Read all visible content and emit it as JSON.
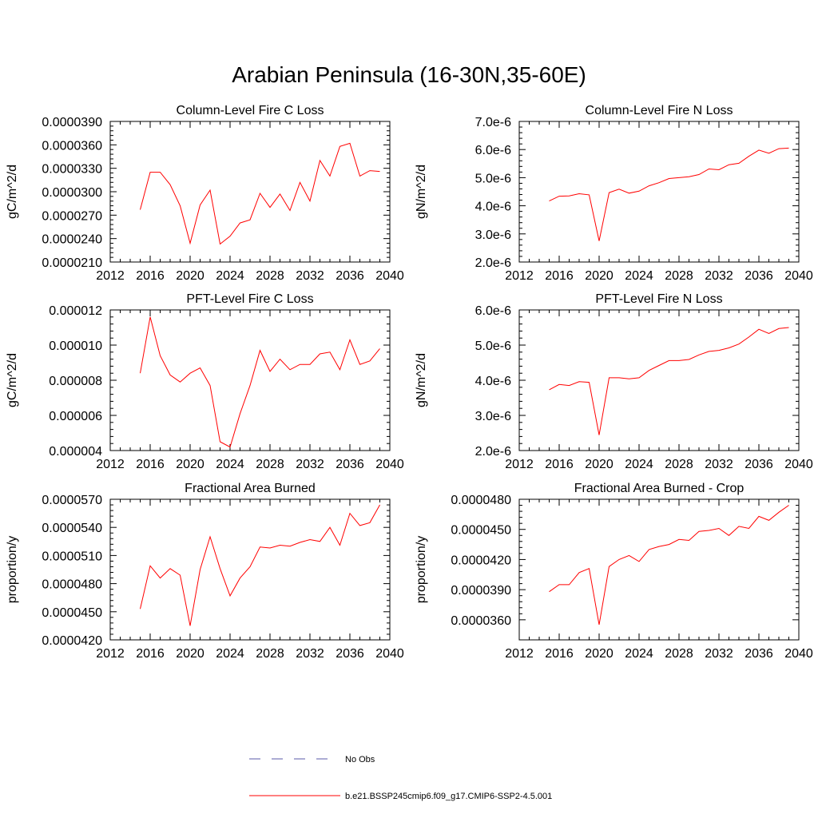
{
  "page": {
    "title": "Arabian Peninsula (16-30N,35-60E)"
  },
  "legend": {
    "entries": [
      {
        "label": "No Obs",
        "color": "#5a5aa8",
        "style": "dashed"
      },
      {
        "label": "b.e21.BSSP245cmip6.f09_g17.CMIP6-SSP2-4.5.001",
        "color": "#ff0000",
        "style": "solid"
      }
    ]
  },
  "chart_data": [
    {
      "type": "line",
      "title": "Column-Level Fire C Loss",
      "ylabel": "gC/m^2/d",
      "xlim": [
        2012,
        2040
      ],
      "xticks": [
        2012,
        2016,
        2020,
        2024,
        2028,
        2032,
        2036,
        2040
      ],
      "ylim": [
        2.1e-05,
        3.9e-05
      ],
      "yticks": [
        "0.0000210",
        "0.0000240",
        "0.0000270",
        "0.0000300",
        "0.0000330",
        "0.0000360",
        "0.0000390"
      ],
      "grid": false,
      "series": [
        {
          "name": "b.e21.BSSP245cmip6.f09_g17.CMIP6-SSP2-4.5.001",
          "color": "#ff0000",
          "x": [
            2015,
            2016,
            2017,
            2018,
            2019,
            2020,
            2021,
            2022,
            2023,
            2024,
            2025,
            2026,
            2027,
            2028,
            2029,
            2030,
            2031,
            2032,
            2033,
            2034,
            2035,
            2036,
            2037,
            2038,
            2039
          ],
          "values": [
            2.77e-05,
            3.25e-05,
            3.25e-05,
            3.09e-05,
            2.82e-05,
            2.34e-05,
            2.83e-05,
            3.02e-05,
            2.33e-05,
            2.43e-05,
            2.6e-05,
            2.64e-05,
            2.98e-05,
            2.8e-05,
            2.97e-05,
            2.76e-05,
            3.12e-05,
            2.88e-05,
            3.4e-05,
            3.2e-05,
            3.58e-05,
            3.62e-05,
            3.2e-05,
            3.27e-05,
            3.26e-05
          ]
        }
      ]
    },
    {
      "type": "line",
      "title": "Column-Level Fire N Loss",
      "ylabel": "gN/m^2/d",
      "xlim": [
        2012,
        2040
      ],
      "xticks": [
        2012,
        2016,
        2020,
        2024,
        2028,
        2032,
        2036,
        2040
      ],
      "ylim": [
        2e-06,
        7e-06
      ],
      "yticks": [
        "2.0e-6",
        "3.0e-6",
        "4.0e-6",
        "5.0e-6",
        "6.0e-6",
        "7.0e-6"
      ],
      "grid": false,
      "series": [
        {
          "name": "b.e21.BSSP245cmip6.f09_g17.CMIP6-SSP2-4.5.001",
          "color": "#ff0000",
          "x": [
            2015,
            2016,
            2017,
            2018,
            2019,
            2020,
            2021,
            2022,
            2023,
            2024,
            2025,
            2026,
            2027,
            2028,
            2029,
            2030,
            2031,
            2032,
            2033,
            2034,
            2035,
            2036,
            2037,
            2038,
            2039
          ],
          "values": [
            4.17e-06,
            4.34e-06,
            4.35e-06,
            4.43e-06,
            4.39e-06,
            2.75e-06,
            4.47e-06,
            4.59e-06,
            4.45e-06,
            4.52e-06,
            4.71e-06,
            4.82e-06,
            4.97e-06,
            5e-06,
            5.03e-06,
            5.11e-06,
            5.31e-06,
            5.28e-06,
            5.46e-06,
            5.51e-06,
            5.76e-06,
            5.98e-06,
            5.87e-06,
            6.03e-06,
            6.05e-06
          ]
        }
      ]
    },
    {
      "type": "line",
      "title": "PFT-Level Fire C Loss",
      "ylabel": "gC/m^2/d",
      "xlim": [
        2012,
        2040
      ],
      "xticks": [
        2012,
        2016,
        2020,
        2024,
        2028,
        2032,
        2036,
        2040
      ],
      "ylim": [
        4e-06,
        1.2e-05
      ],
      "yticks": [
        "0.000004",
        "0.000006",
        "0.000008",
        "0.000010",
        "0.000012"
      ],
      "grid": false,
      "series": [
        {
          "name": "b.e21.BSSP245cmip6.f09_g17.CMIP6-SSP2-4.5.001",
          "color": "#ff0000",
          "x": [
            2015,
            2016,
            2017,
            2018,
            2019,
            2020,
            2021,
            2022,
            2023,
            2024,
            2025,
            2026,
            2027,
            2028,
            2029,
            2030,
            2031,
            2032,
            2033,
            2034,
            2035,
            2036,
            2037,
            2038,
            2039
          ],
          "values": [
            8.4e-06,
            1.16e-05,
            9.4e-06,
            8.3e-06,
            7.9e-06,
            8.4e-06,
            8.7e-06,
            7.7e-06,
            4.5e-06,
            4.2e-06,
            6.1e-06,
            7.7e-06,
            9.7e-06,
            8.5e-06,
            9.2e-06,
            8.6e-06,
            8.9e-06,
            8.9e-06,
            9.5e-06,
            9.6e-06,
            8.6e-06,
            1.03e-05,
            8.9e-06,
            9.1e-06,
            9.8e-06
          ]
        }
      ]
    },
    {
      "type": "line",
      "title": "PFT-Level Fire N Loss",
      "ylabel": "gN/m^2/d",
      "xlim": [
        2012,
        2040
      ],
      "xticks": [
        2012,
        2016,
        2020,
        2024,
        2028,
        2032,
        2036,
        2040
      ],
      "ylim": [
        2e-06,
        6e-06
      ],
      "yticks": [
        "2.0e-6",
        "3.0e-6",
        "4.0e-6",
        "5.0e-6",
        "6.0e-6"
      ],
      "grid": false,
      "series": [
        {
          "name": "b.e21.BSSP245cmip6.f09_g17.CMIP6-SSP2-4.5.001",
          "color": "#ff0000",
          "x": [
            2015,
            2016,
            2017,
            2018,
            2019,
            2020,
            2021,
            2022,
            2023,
            2024,
            2025,
            2026,
            2027,
            2028,
            2029,
            2030,
            2031,
            2032,
            2033,
            2034,
            2035,
            2036,
            2037,
            2038,
            2039
          ],
          "values": [
            3.73e-06,
            3.88e-06,
            3.85e-06,
            3.96e-06,
            3.94e-06,
            2.44e-06,
            4.07e-06,
            4.07e-06,
            4.04e-06,
            4.07e-06,
            4.28e-06,
            4.42e-06,
            4.56e-06,
            4.56e-06,
            4.59e-06,
            4.72e-06,
            4.82e-06,
            4.85e-06,
            4.92e-06,
            5.03e-06,
            5.23e-06,
            5.45e-06,
            5.33e-06,
            5.47e-06,
            5.5e-06
          ]
        }
      ]
    },
    {
      "type": "line",
      "title": "Fractional Area Burned",
      "ylabel": "proportion/y",
      "xlim": [
        2012,
        2040
      ],
      "xticks": [
        2012,
        2016,
        2020,
        2024,
        2028,
        2032,
        2036,
        2040
      ],
      "ylim": [
        4.2e-05,
        5.7e-05
      ],
      "yticks": [
        "0.0000420",
        "0.0000450",
        "0.0000480",
        "0.0000510",
        "0.0000540",
        "0.0000570"
      ],
      "grid": false,
      "series": [
        {
          "name": "b.e21.BSSP245cmip6.f09_g17.CMIP6-SSP2-4.5.001",
          "color": "#ff0000",
          "x": [
            2015,
            2016,
            2017,
            2018,
            2019,
            2020,
            2021,
            2022,
            2023,
            2024,
            2025,
            2026,
            2027,
            2028,
            2029,
            2030,
            2031,
            2032,
            2033,
            2034,
            2035,
            2036,
            2037,
            2038,
            2039
          ],
          "values": [
            4.53e-05,
            4.99e-05,
            4.86e-05,
            4.96e-05,
            4.89e-05,
            4.35e-05,
            4.95e-05,
            5.3e-05,
            4.96e-05,
            4.67e-05,
            4.86e-05,
            4.98e-05,
            5.19e-05,
            5.18e-05,
            5.21e-05,
            5.2e-05,
            5.24e-05,
            5.27e-05,
            5.25e-05,
            5.4e-05,
            5.21e-05,
            5.55e-05,
            5.42e-05,
            5.45e-05,
            5.64e-05
          ]
        }
      ]
    },
    {
      "type": "line",
      "title": "Fractional Area Burned - Crop",
      "ylabel": "proportion/y",
      "xlim": [
        2012,
        2040
      ],
      "xticks": [
        2012,
        2016,
        2020,
        2024,
        2028,
        2032,
        2036,
        2040
      ],
      "ylim": [
        3.4e-05,
        4.8e-05
      ],
      "yticks": [
        "0.0000360",
        "0.0000390",
        "0.0000420",
        "0.0000450",
        "0.0000480"
      ],
      "grid": false,
      "series": [
        {
          "name": "b.e21.BSSP245cmip6.f09_g17.CMIP6-SSP2-4.5.001",
          "color": "#ff0000",
          "x": [
            2015,
            2016,
            2017,
            2018,
            2019,
            2020,
            2021,
            2022,
            2023,
            2024,
            2025,
            2026,
            2027,
            2028,
            2029,
            2030,
            2031,
            2032,
            2033,
            2034,
            2035,
            2036,
            2037,
            2038,
            2039
          ],
          "values": [
            3.88e-05,
            3.95e-05,
            3.95e-05,
            4.07e-05,
            4.11e-05,
            3.55e-05,
            4.13e-05,
            4.2e-05,
            4.24e-05,
            4.18e-05,
            4.3e-05,
            4.33e-05,
            4.35e-05,
            4.4e-05,
            4.39e-05,
            4.48e-05,
            4.49e-05,
            4.51e-05,
            4.44e-05,
            4.53e-05,
            4.51e-05,
            4.63e-05,
            4.59e-05,
            4.67e-05,
            4.74e-05
          ]
        }
      ]
    }
  ]
}
